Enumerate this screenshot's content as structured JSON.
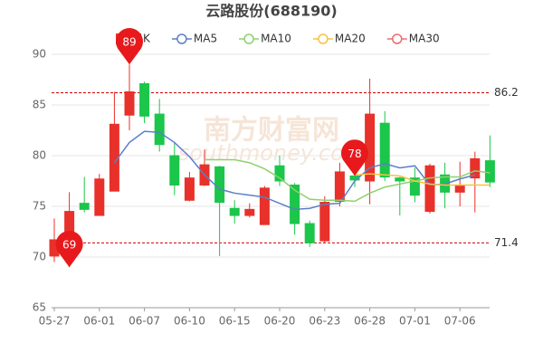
{
  "chart_data": {
    "type": "candlestick",
    "title": "云路股份(688190)",
    "watermark": [
      "南方财富网",
      "southmoney.com"
    ],
    "categories": [
      "05-27",
      null,
      null,
      "06-01",
      null,
      null,
      "06-07",
      null,
      null,
      "06-10",
      null,
      null,
      "06-15",
      null,
      null,
      "06-20",
      null,
      null,
      "06-23",
      null,
      null,
      "06-28",
      null,
      null,
      "07-01",
      null,
      null,
      "07-06",
      null,
      null
    ],
    "series": [
      {
        "name": "日K",
        "up_color": "#e8312a",
        "down_color": "#1bc64a",
        "open": [
          70.1,
          70.5,
          75.3,
          74.1,
          76.5,
          84.0,
          87.1,
          84.1,
          80.0,
          75.6,
          77.1,
          78.9,
          74.8,
          74.1,
          73.2,
          79.0,
          77.1,
          73.3,
          71.6,
          75.5,
          78,
          77.5,
          83.2,
          77.8,
          77.8,
          74.5,
          78.1,
          76.4,
          77.8,
          79.5
        ],
        "close": [
          71.7,
          74.5,
          74.7,
          77.7,
          83.1,
          86.3,
          83.9,
          81.1,
          77.1,
          77.8,
          79.1,
          75.4,
          74.1,
          74.7,
          76.8,
          77.5,
          73.3,
          71.4,
          75.4,
          78.4,
          77.6,
          84.1,
          77.9,
          77.5,
          76.1,
          79.0,
          76.4,
          77.1,
          79.7,
          77.4
        ],
        "high": [
          73.8,
          76.4,
          77.9,
          78.2,
          86.3,
          89,
          87.3,
          85.6,
          81.3,
          78.4,
          80.6,
          79.0,
          75.6,
          75.3,
          77.0,
          80.0,
          77.3,
          73.6,
          76.0,
          79.3,
          78.3,
          87.6,
          84.4,
          77.9,
          78.8,
          79.2,
          79.3,
          79.4,
          80.4,
          82.0
        ],
        "low": [
          69.5,
          69,
          74.4,
          74.1,
          76.5,
          82.5,
          83.2,
          80.4,
          76.1,
          75.5,
          77.0,
          70.1,
          73.3,
          73.9,
          73.2,
          77.0,
          72.2,
          71.0,
          71.4,
          75.0,
          76.9,
          75.2,
          77.5,
          74.1,
          75.4,
          74.3,
          74.8,
          75.0,
          74.4,
          76.9
        ]
      },
      {
        "name": "MA5",
        "color": "#5b7fc9",
        "values": [
          null,
          null,
          null,
          null,
          79.3,
          81.3,
          82.4,
          82.3,
          81.3,
          79.9,
          78.1,
          76.7,
          76.3,
          76.1,
          75.9,
          75.3,
          74.7,
          74.8,
          75.2,
          75.3,
          77.5,
          78.8,
          79.2,
          78.8,
          79.0,
          77.1,
          77.2,
          77.7,
          78.1,
          null
        ]
      },
      {
        "name": "MA10",
        "color": "#8fd06e",
        "values": [
          null,
          null,
          null,
          null,
          null,
          null,
          null,
          null,
          null,
          null,
          79.6,
          79.6,
          79.6,
          79.3,
          78.7,
          77.8,
          76.6,
          75.7,
          75.6,
          75.6,
          75.5,
          76.3,
          76.9,
          77.2,
          77.5,
          77.8,
          77.9,
          77.9,
          78.5,
          78.3
        ]
      },
      {
        "name": "MA20",
        "color": "#f5c243",
        "values": [
          null,
          null,
          null,
          null,
          null,
          null,
          null,
          null,
          null,
          null,
          null,
          null,
          null,
          null,
          null,
          null,
          null,
          null,
          null,
          null,
          78.1,
          78.2,
          78.1,
          78.0,
          77.5,
          77.2,
          77.1,
          77.1,
          77.1,
          77.1
        ]
      },
      {
        "name": "MA30",
        "color": "#f06a6a",
        "values": [
          null,
          null,
          null,
          null,
          null,
          null,
          null,
          null,
          null,
          null,
          null,
          null,
          null,
          null,
          null,
          null,
          null,
          null,
          null,
          null,
          null,
          null,
          null,
          null,
          null,
          null,
          null,
          null,
          null,
          null
        ]
      }
    ],
    "annotations": [
      89,
      69,
      78
    ],
    "annotation_color": "#e8191c",
    "hlines": [
      86.2,
      71.4
    ],
    "ylim": [
      65,
      90
    ],
    "yticks": [
      65,
      70,
      75,
      80,
      85,
      90
    ],
    "grid": true
  }
}
